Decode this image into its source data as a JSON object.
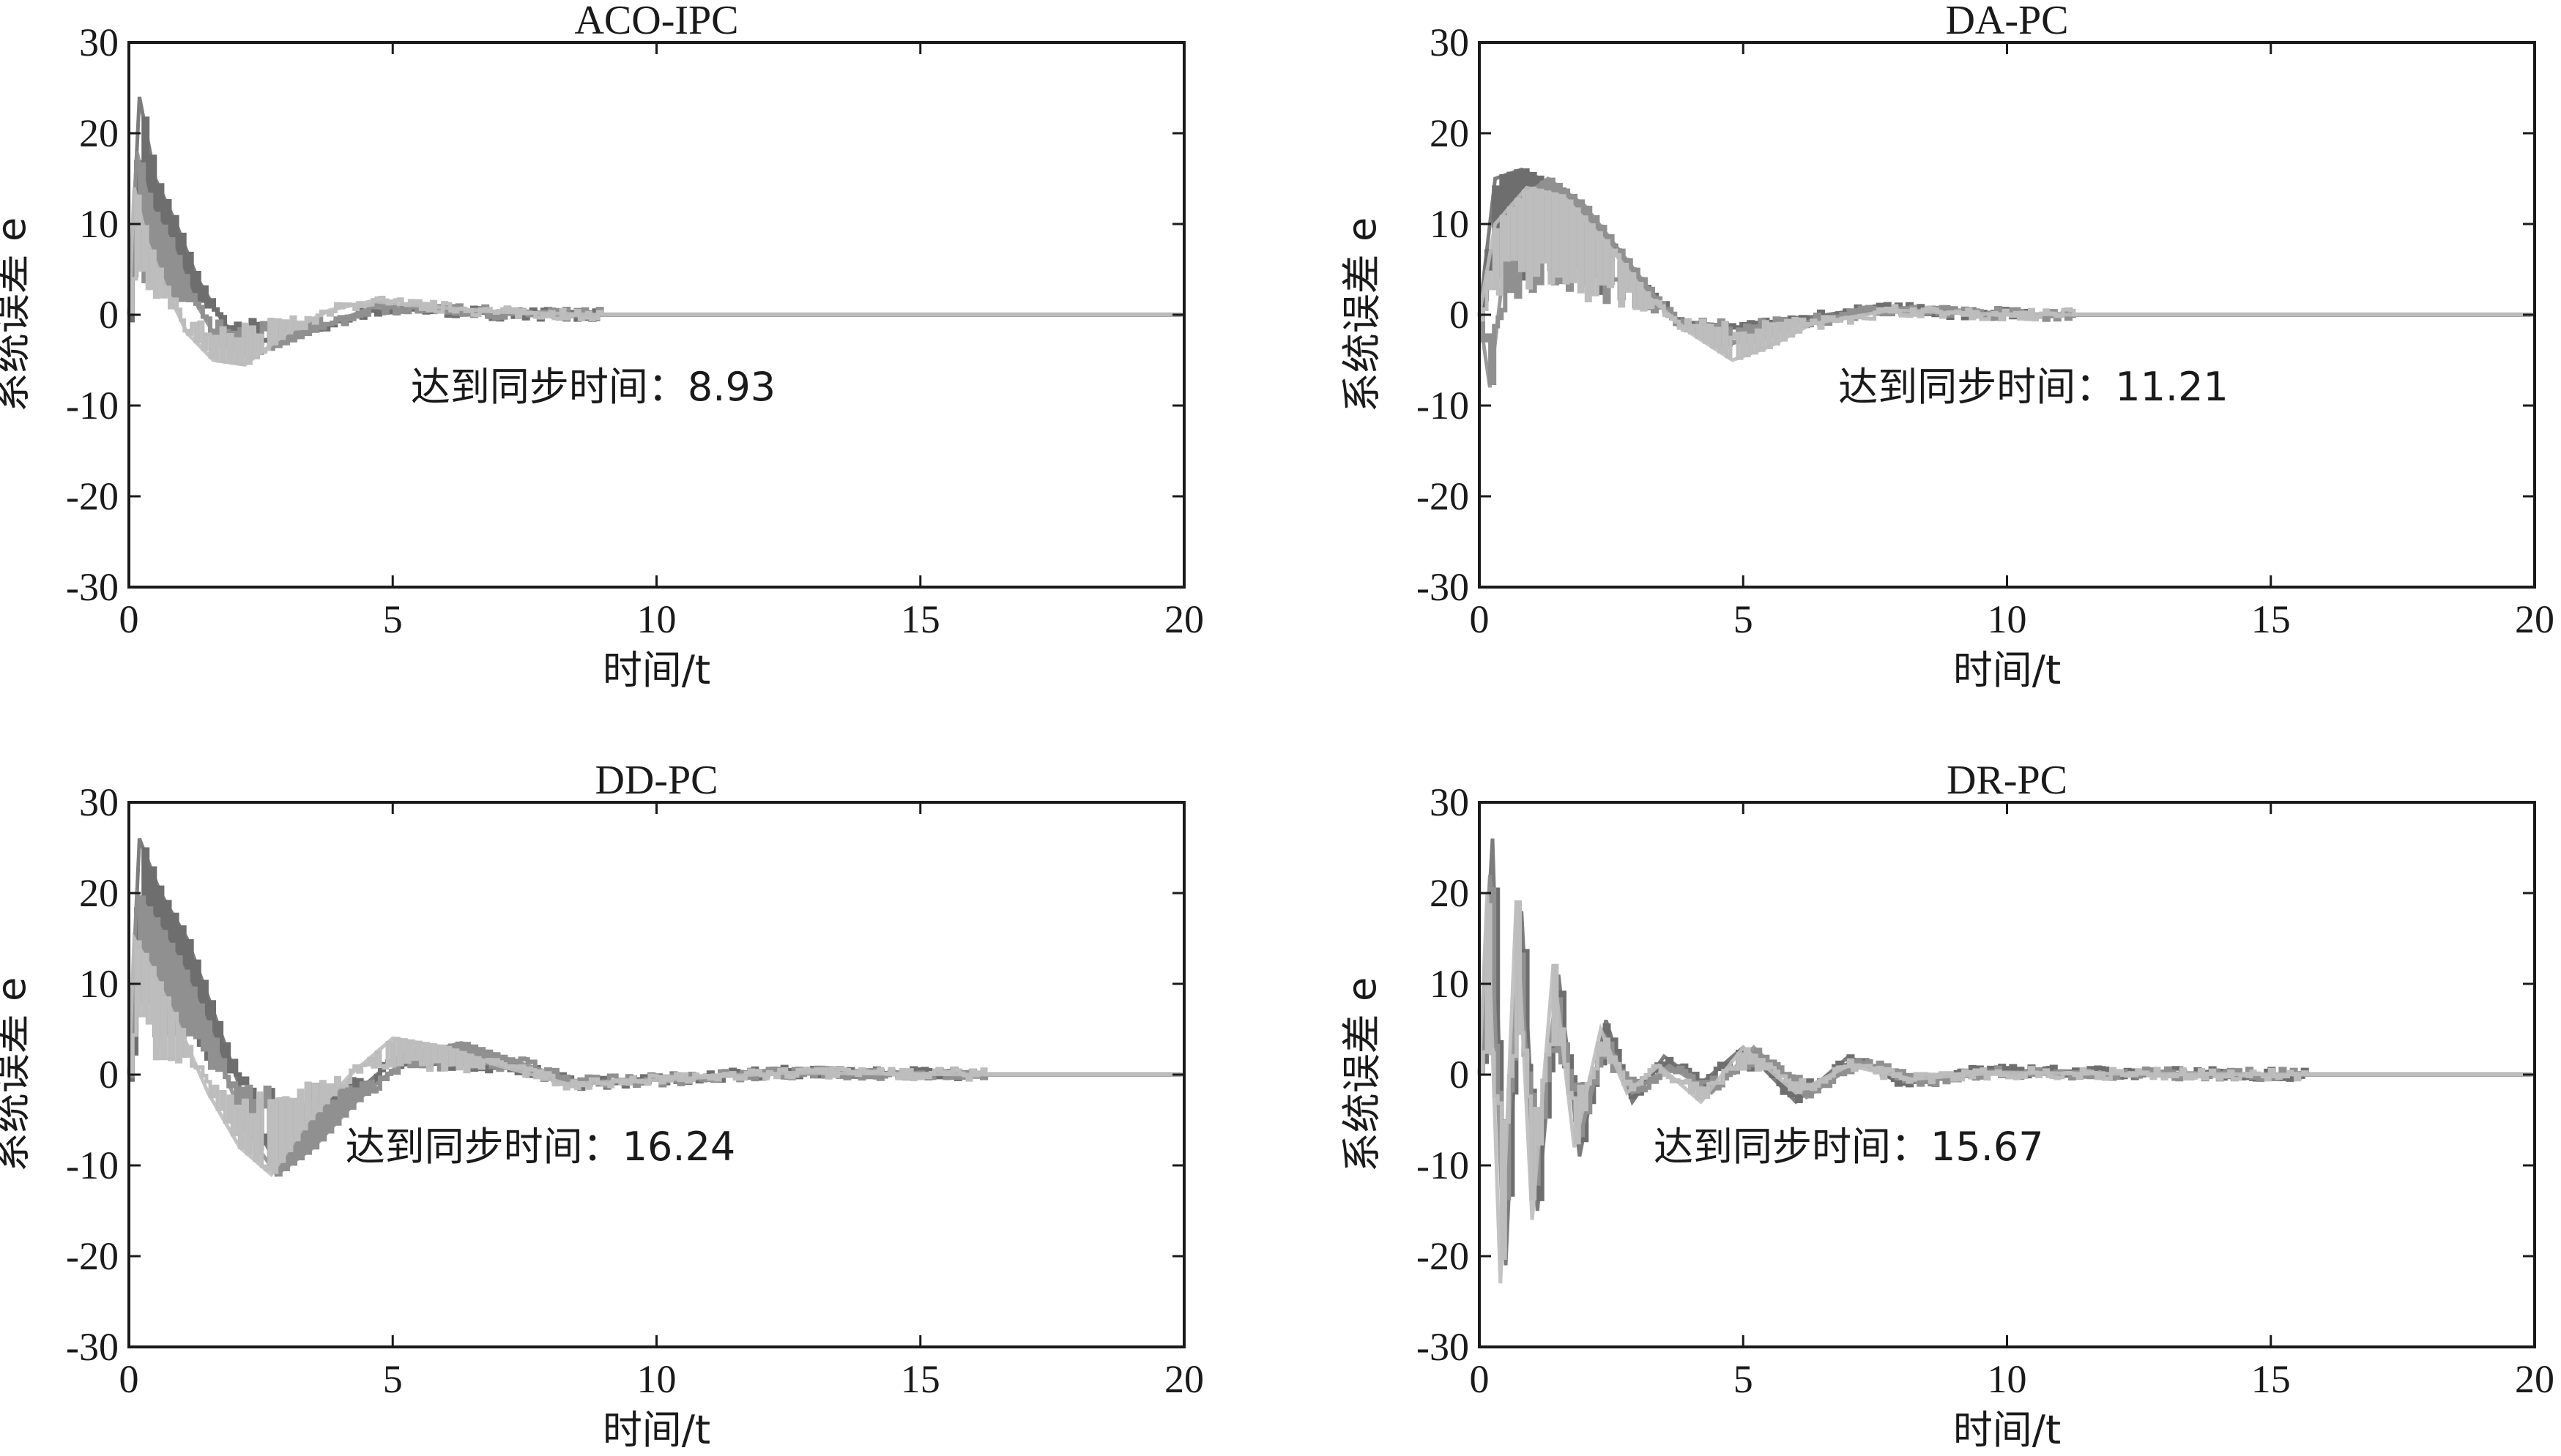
{
  "chart_data": [
    {
      "type": "line",
      "title": "ACO-IPC",
      "xlabel": "时间/t",
      "ylabel": "系统误差 e",
      "xlim": [
        0,
        20
      ],
      "ylim": [
        -30,
        30
      ],
      "xticks": [
        0,
        5,
        10,
        15,
        20
      ],
      "yticks": [
        -30,
        -20,
        -10,
        0,
        10,
        20,
        30
      ],
      "xtick_labels": [
        "0",
        "5",
        "10",
        "15",
        "20"
      ],
      "ytick_labels": [
        "-30",
        "-20",
        "-10",
        "0",
        "10",
        "20",
        "30"
      ],
      "annotation": {
        "text": "达到同步时间：8.93",
        "x": 8.8,
        "y": -8
      },
      "sync_time": 8.93,
      "series": [
        {
          "color": "#6e6e6e",
          "points": [
            [
              0,
              0
            ],
            [
              0.2,
              24
            ],
            [
              0.5,
              15
            ],
            [
              0.9,
              10
            ],
            [
              1.3,
              4
            ],
            [
              1.8,
              -1
            ],
            [
              2.3,
              -3
            ],
            [
              3.0,
              -2.5
            ],
            [
              3.8,
              -1
            ],
            [
              4.5,
              0.4
            ],
            [
              5.5,
              0.6
            ],
            [
              7.0,
              0.1
            ],
            [
              9.0,
              0
            ],
            [
              20,
              0
            ]
          ]
        },
        {
          "color": "#909090",
          "points": [
            [
              0,
              0
            ],
            [
              0.15,
              18
            ],
            [
              0.4,
              12
            ],
            [
              0.8,
              8
            ],
            [
              1.2,
              2
            ],
            [
              1.7,
              -3
            ],
            [
              2.3,
              -4.5
            ],
            [
              3.0,
              -3
            ],
            [
              3.8,
              -1
            ],
            [
              4.6,
              0.8
            ],
            [
              5.5,
              0.8
            ],
            [
              7.0,
              0.2
            ],
            [
              9.0,
              0
            ],
            [
              20,
              0
            ]
          ]
        },
        {
          "color": "#bdbdbd",
          "points": [
            [
              0,
              0
            ],
            [
              0.1,
              14
            ],
            [
              0.35,
              8
            ],
            [
              0.7,
              3
            ],
            [
              1.1,
              -2
            ],
            [
              1.6,
              -5
            ],
            [
              2.2,
              -5.5
            ],
            [
              3.0,
              -2
            ],
            [
              3.8,
              0.5
            ],
            [
              4.6,
              1.5
            ],
            [
              5.5,
              1
            ],
            [
              7.0,
              0.3
            ],
            [
              9.0,
              0
            ],
            [
              20,
              0
            ]
          ]
        }
      ]
    },
    {
      "type": "line",
      "title": "DA-PC",
      "xlabel": "时间/t",
      "ylabel": "系统误差 e",
      "xlim": [
        0,
        20
      ],
      "ylim": [
        -30,
        30
      ],
      "xticks": [
        0,
        5,
        10,
        15,
        20
      ],
      "yticks": [
        -30,
        -20,
        -10,
        0,
        10,
        20,
        30
      ],
      "xtick_labels": [
        "0",
        "5",
        "10",
        "15",
        "20"
      ],
      "ytick_labels": [
        "-30",
        "-20",
        "-10",
        "0",
        "10",
        "20",
        "30"
      ],
      "annotation": {
        "text": "达到同步时间：11.21",
        "x": 10.5,
        "y": -8
      },
      "sync_time": 11.21,
      "series": [
        {
          "color": "#6e6e6e",
          "points": [
            [
              0,
              0
            ],
            [
              0.3,
              15
            ],
            [
              0.8,
              16
            ],
            [
              1.5,
              14
            ],
            [
              2.2,
              10
            ],
            [
              3.0,
              4
            ],
            [
              3.8,
              -1
            ],
            [
              4.5,
              -3.5
            ],
            [
              5.3,
              -2.5
            ],
            [
              6.0,
              -0.5
            ],
            [
              7.5,
              0.8
            ],
            [
              9.0,
              0.2
            ],
            [
              11.2,
              0
            ],
            [
              20,
              0
            ]
          ]
        },
        {
          "color": "#909090",
          "points": [
            [
              0,
              0
            ],
            [
              0.2,
              -8
            ],
            [
              0.6,
              12
            ],
            [
              1.3,
              15
            ],
            [
              2.0,
              12
            ],
            [
              2.8,
              6
            ],
            [
              3.6,
              0
            ],
            [
              4.4,
              -3
            ],
            [
              5.2,
              -3
            ],
            [
              6.0,
              -1
            ],
            [
              7.5,
              0.6
            ],
            [
              9.0,
              0.2
            ],
            [
              11.2,
              0
            ],
            [
              20,
              0
            ]
          ]
        },
        {
          "color": "#bdbdbd",
          "points": [
            [
              0,
              0
            ],
            [
              0.3,
              10
            ],
            [
              0.9,
              14
            ],
            [
              1.6,
              13
            ],
            [
              2.4,
              8
            ],
            [
              3.2,
              2
            ],
            [
              4.0,
              -2
            ],
            [
              4.8,
              -5
            ],
            [
              5.5,
              -3.5
            ],
            [
              6.3,
              -1
            ],
            [
              7.8,
              0.5
            ],
            [
              9.5,
              0.1
            ],
            [
              11.2,
              0
            ],
            [
              20,
              0
            ]
          ]
        }
      ]
    },
    {
      "type": "line",
      "title": "DD-PC",
      "xlabel": "时间/t",
      "ylabel": "系统误差 e",
      "xlim": [
        0,
        20
      ],
      "ylim": [
        -30,
        30
      ],
      "xticks": [
        0,
        5,
        10,
        15,
        20
      ],
      "yticks": [
        -30,
        -20,
        -10,
        0,
        10,
        20,
        30
      ],
      "xtick_labels": [
        "0",
        "5",
        "10",
        "15",
        "20"
      ],
      "ytick_labels": [
        "-30",
        "-20",
        "-10",
        "0",
        "10",
        "20",
        "30"
      ],
      "annotation": {
        "text": "达到同步时间：16.24",
        "x": 7.8,
        "y": -8
      },
      "sync_time": 16.24,
      "series": [
        {
          "color": "#6e6e6e",
          "points": [
            [
              0,
              0
            ],
            [
              0.2,
              26
            ],
            [
              0.6,
              20
            ],
            [
              1.1,
              15
            ],
            [
              1.6,
              7
            ],
            [
              2.2,
              -3
            ],
            [
              2.8,
              -10
            ],
            [
              3.5,
              -7
            ],
            [
              4.3,
              -2
            ],
            [
              5.2,
              2.5
            ],
            [
              6.2,
              3
            ],
            [
              7.2,
              1
            ],
            [
              8.5,
              -1
            ],
            [
              10.0,
              -0.5
            ],
            [
              12.5,
              0.3
            ],
            [
              16.2,
              0
            ],
            [
              20,
              0
            ]
          ]
        },
        {
          "color": "#909090",
          "points": [
            [
              0,
              0
            ],
            [
              0.15,
              20
            ],
            [
              0.5,
              17
            ],
            [
              1.0,
              12
            ],
            [
              1.6,
              4
            ],
            [
              2.2,
              -6
            ],
            [
              2.8,
              -11
            ],
            [
              3.5,
              -8
            ],
            [
              4.3,
              -3
            ],
            [
              5.3,
              2
            ],
            [
              6.3,
              3.5
            ],
            [
              7.3,
              1.5
            ],
            [
              8.5,
              -0.8
            ],
            [
              10.0,
              -0.6
            ],
            [
              12.5,
              0.2
            ],
            [
              16.2,
              0
            ],
            [
              20,
              0
            ]
          ]
        },
        {
          "color": "#bdbdbd",
          "points": [
            [
              0,
              0
            ],
            [
              0.1,
              15
            ],
            [
              0.4,
              12
            ],
            [
              0.9,
              6
            ],
            [
              1.5,
              -2
            ],
            [
              2.1,
              -8
            ],
            [
              2.7,
              -11
            ],
            [
              3.4,
              -5
            ],
            [
              4.2,
              0
            ],
            [
              5.0,
              4
            ],
            [
              6.0,
              3
            ],
            [
              7.0,
              1
            ],
            [
              8.3,
              -1
            ],
            [
              10.0,
              -0.6
            ],
            [
              12.5,
              0.2
            ],
            [
              16.2,
              0
            ],
            [
              20,
              0
            ]
          ]
        }
      ]
    },
    {
      "type": "line",
      "title": "DR-PC",
      "xlabel": "时间/t",
      "ylabel": "系统误差 e",
      "xlim": [
        0,
        20
      ],
      "ylim": [
        -30,
        30
      ],
      "xticks": [
        0,
        5,
        10,
        15,
        20
      ],
      "yticks": [
        -30,
        -20,
        -10,
        0,
        10,
        20,
        30
      ],
      "xtick_labels": [
        "0",
        "5",
        "10",
        "15",
        "20"
      ],
      "ytick_labels": [
        "-30",
        "-20",
        "-10",
        "0",
        "10",
        "20",
        "30"
      ],
      "annotation": {
        "text": "达到同步时间：15.67",
        "x": 7.0,
        "y": -8
      },
      "sync_time": 15.67,
      "series": [
        {
          "color": "#6e6e6e",
          "points": [
            [
              0,
              0
            ],
            [
              0.25,
              26
            ],
            [
              0.5,
              -21
            ],
            [
              0.8,
              18
            ],
            [
              1.1,
              -15
            ],
            [
              1.5,
              11
            ],
            [
              1.9,
              -9
            ],
            [
              2.4,
              6
            ],
            [
              2.9,
              -3
            ],
            [
              3.5,
              2
            ],
            [
              4.2,
              -1
            ],
            [
              5.0,
              3
            ],
            [
              6.0,
              -3
            ],
            [
              7.0,
              2
            ],
            [
              8.0,
              -1
            ],
            [
              9.5,
              0.5
            ],
            [
              12.0,
              0.2
            ],
            [
              15.7,
              0
            ],
            [
              20,
              0
            ]
          ]
        },
        {
          "color": "#909090",
          "points": [
            [
              0,
              0
            ],
            [
              0.2,
              22
            ],
            [
              0.45,
              -18
            ],
            [
              0.75,
              15
            ],
            [
              1.05,
              -12
            ],
            [
              1.45,
              9
            ],
            [
              1.9,
              -7
            ],
            [
              2.4,
              4
            ],
            [
              2.9,
              -2
            ],
            [
              3.6,
              1
            ],
            [
              4.4,
              -2
            ],
            [
              5.2,
              3
            ],
            [
              6.2,
              -2.5
            ],
            [
              7.2,
              1.5
            ],
            [
              8.3,
              -0.8
            ],
            [
              9.8,
              0.3
            ],
            [
              12.0,
              0.1
            ],
            [
              15.7,
              0
            ],
            [
              20,
              0
            ]
          ]
        },
        {
          "color": "#bdbdbd",
          "points": [
            [
              0,
              0
            ],
            [
              0.15,
              20
            ],
            [
              0.4,
              -23
            ],
            [
              0.7,
              19
            ],
            [
              1.0,
              -16
            ],
            [
              1.4,
              12
            ],
            [
              1.8,
              -8
            ],
            [
              2.3,
              5
            ],
            [
              2.8,
              -2
            ],
            [
              3.4,
              1
            ],
            [
              4.2,
              -3
            ],
            [
              5.0,
              3
            ],
            [
              6.0,
              -2
            ],
            [
              7.0,
              1
            ],
            [
              8.2,
              -0.5
            ],
            [
              9.8,
              0.2
            ],
            [
              12.0,
              0.1
            ],
            [
              15.7,
              0
            ],
            [
              20,
              0
            ]
          ]
        }
      ]
    }
  ]
}
